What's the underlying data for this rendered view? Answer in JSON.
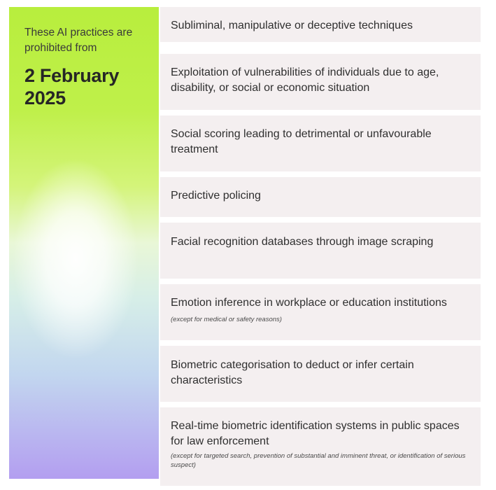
{
  "left_panel": {
    "intro_text": "These AI practices are prohibited from",
    "date_text": "2 February 2025"
  },
  "practices": [
    {
      "text": "Subliminal, manipulative or deceptive techniques"
    },
    {
      "text": "Exploitation of vulnerabilities of individuals due to age, disability, or social or economic situation"
    },
    {
      "text": "Social scoring leading to detrimental or unfavourable treatment"
    },
    {
      "text": "Predictive policing"
    },
    {
      "text": "Facial recognition databases through image scraping"
    },
    {
      "text": "Emotion inference in workplace or education institutions",
      "note": "(except for medical or safety reasons)"
    },
    {
      "text": "Biometric categorisation to deduct or infer certain characteristics"
    },
    {
      "text": "Real-time biometric identification systems in public spaces for law enforcement",
      "note": "(except for targeted search, prevention of substantial and imminent threat, or identification of serious suspect)"
    }
  ],
  "colors": {
    "panel_top": "#b8ee3d",
    "panel_bottom": "#b39ef0",
    "row_background": "#f4eff0"
  }
}
